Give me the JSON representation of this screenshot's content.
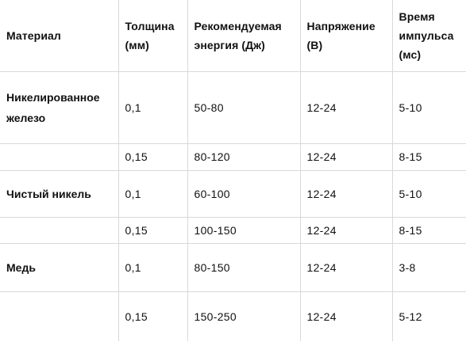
{
  "table": {
    "headers": [
      "Материал",
      "Толщина (мм)",
      "Рекомендуемая энергия (Дж)",
      "Напряжение (В)",
      "Время импульса (мс)"
    ],
    "rows": [
      [
        "Никелированное железо",
        "0,1",
        "50-80",
        "12-24",
        "5-10"
      ],
      [
        "",
        "0,15",
        "80-120",
        "12-24",
        "8-15"
      ],
      [
        "Чистый никель",
        "0,1",
        "60-100",
        "12-24",
        "5-10"
      ],
      [
        "",
        "0,15",
        "100-150",
        "12-24",
        "8-15"
      ],
      [
        "Медь",
        "0,1",
        "80-150",
        "12-24",
        "3-8"
      ],
      [
        "",
        "0,15",
        "150-250",
        "12-24",
        "5-12"
      ]
    ]
  }
}
